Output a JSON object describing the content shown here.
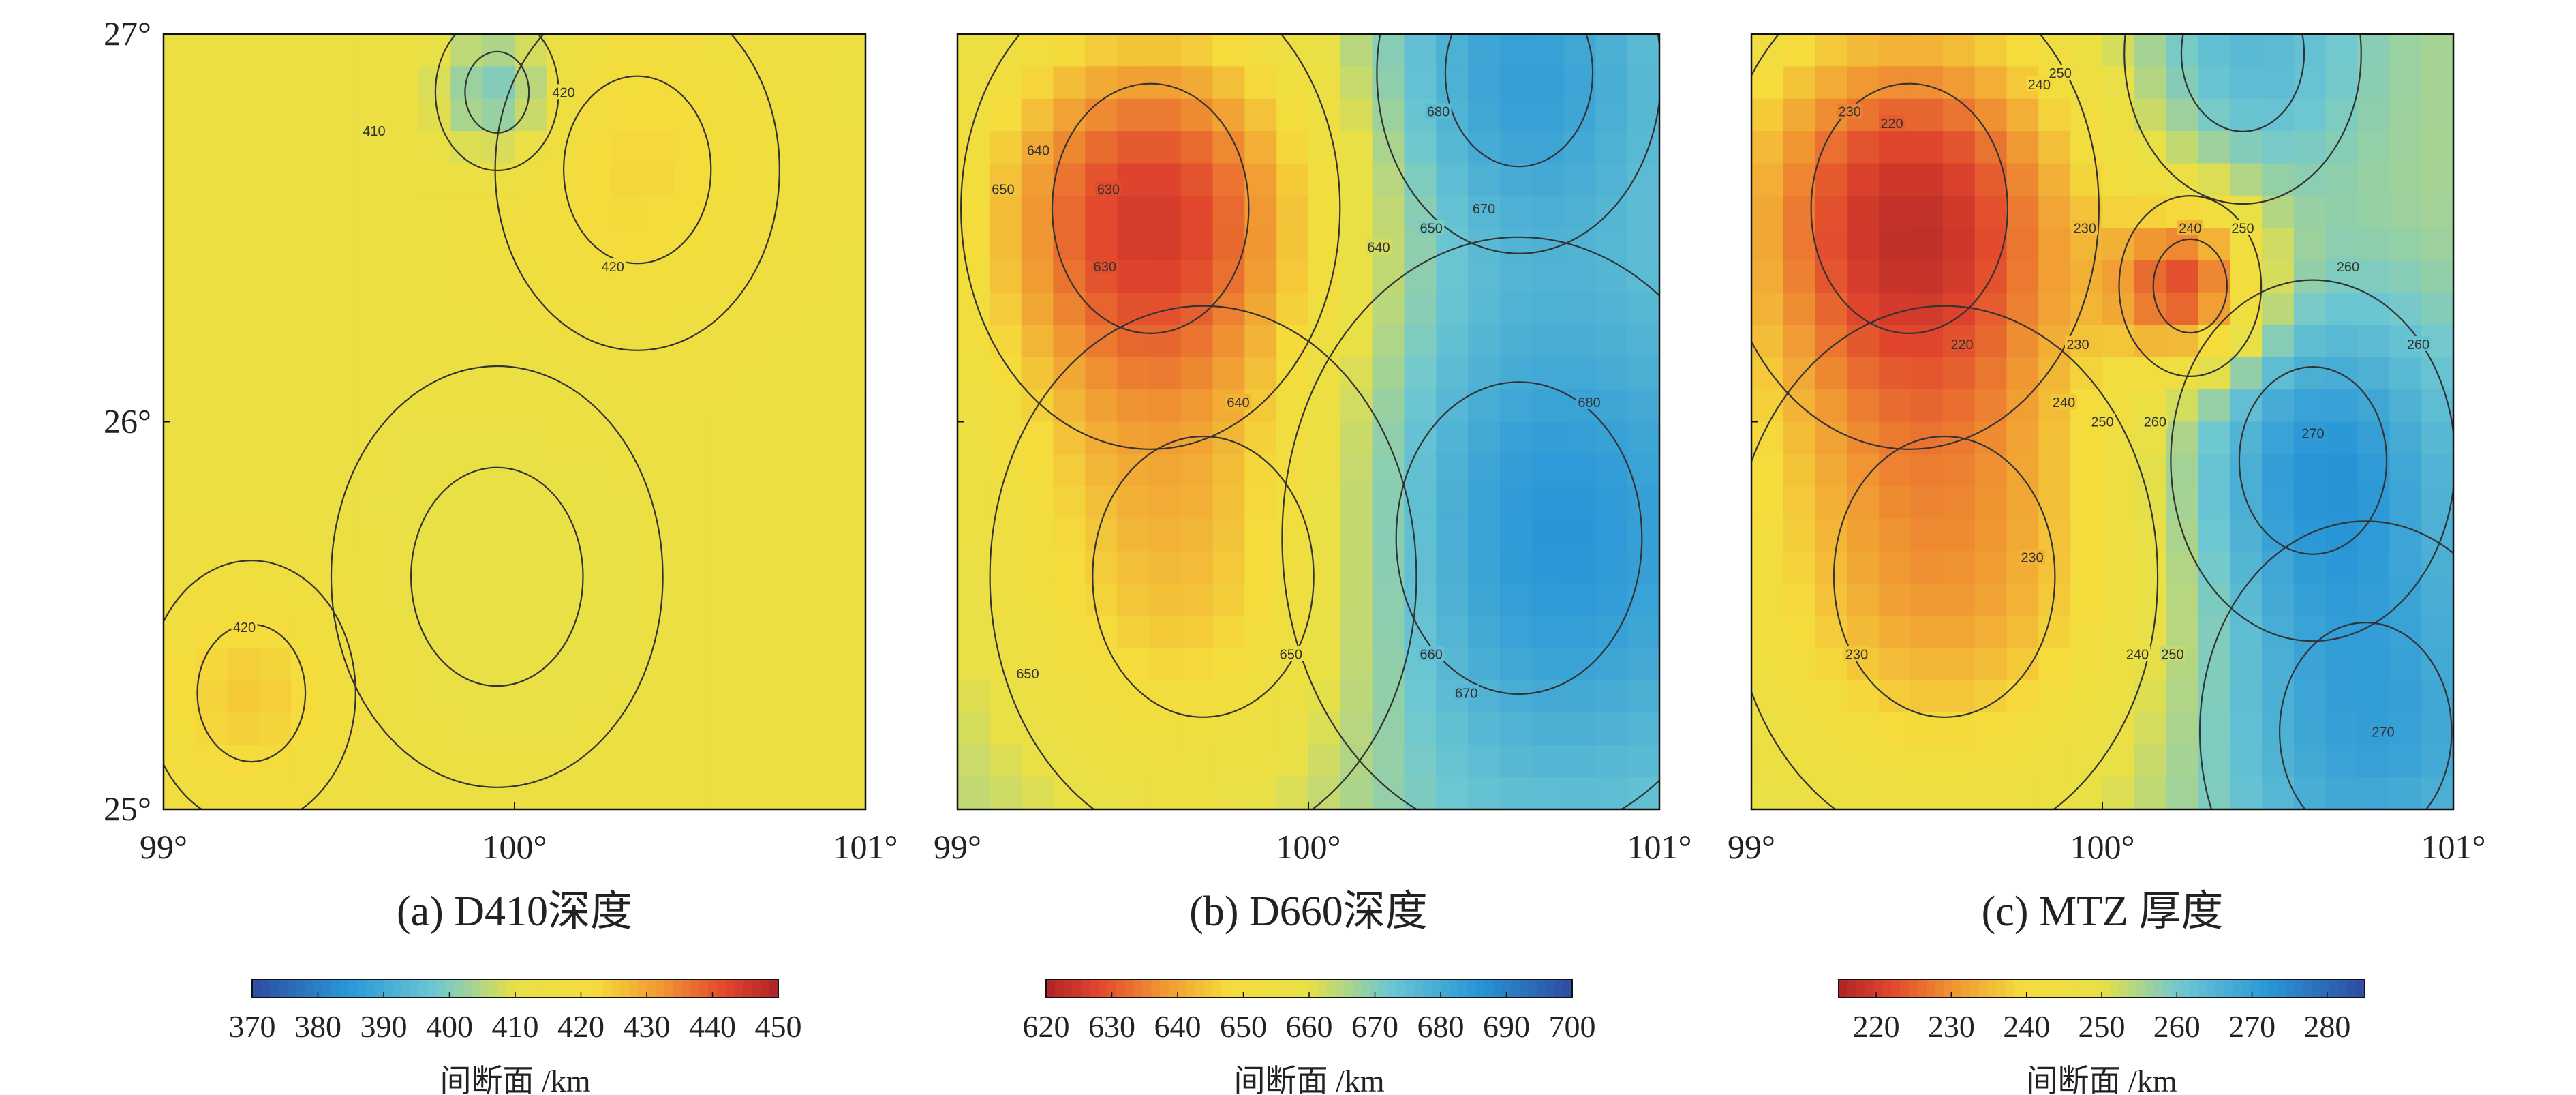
{
  "chart_data": [
    {
      "type": "heatmap",
      "panel": "a",
      "caption": "(a) D410深度",
      "xlim": [
        99,
        101
      ],
      "ylim": [
        25,
        27
      ],
      "xticks": [
        "99°",
        "100°",
        "101°"
      ],
      "yticks": [
        "25°",
        "26°",
        "27°"
      ],
      "colormap": "blue-to-red",
      "colorbar": {
        "ticks": [
          "370",
          "380",
          "390",
          "400",
          "410",
          "420",
          "430",
          "440",
          "450"
        ],
        "min": 370,
        "max": 450,
        "label": "间断面 /km"
      },
      "base_value": 414,
      "blobs": [
        {
          "lon": 100.35,
          "lat": 26.65,
          "value": 423,
          "r": 0.3
        },
        {
          "lon": 99.95,
          "lat": 26.85,
          "value": 397,
          "r": 0.13
        },
        {
          "lon": 99.25,
          "lat": 25.3,
          "value": 425,
          "r": 0.22
        },
        {
          "lon": 99.95,
          "lat": 25.6,
          "value": 410,
          "r": 0.35
        }
      ],
      "contour_labels": [
        {
          "text": "420",
          "lon": 100.14,
          "lat": 26.85
        },
        {
          "text": "410",
          "lon": 99.6,
          "lat": 26.75
        },
        {
          "text": "420",
          "lon": 100.28,
          "lat": 26.4
        },
        {
          "text": "420",
          "lon": 99.23,
          "lat": 25.47
        }
      ]
    },
    {
      "type": "heatmap",
      "panel": "b",
      "caption": "(b) D660深度",
      "xlim": [
        99,
        101
      ],
      "ylim": [
        25,
        27
      ],
      "xticks": [
        "99°",
        "100°",
        "101°"
      ],
      "yticks": [
        "25°",
        "26°",
        "27°"
      ],
      "colormap": "red-to-blue",
      "colorbar": {
        "ticks": [
          "620",
          "630",
          "640",
          "650",
          "660",
          "670",
          "680",
          "690",
          "700"
        ],
        "min": 620,
        "max": 700,
        "label": "间断面 /km"
      },
      "base_value": 668,
      "blobs": [
        {
          "lon": 99.55,
          "lat": 26.55,
          "value": 628,
          "r": 0.4
        },
        {
          "lon": 99.7,
          "lat": 25.6,
          "value": 642,
          "r": 0.45
        },
        {
          "lon": 100.6,
          "lat": 25.7,
          "value": 688,
          "r": 0.5
        },
        {
          "lon": 100.6,
          "lat": 26.9,
          "value": 683,
          "r": 0.3
        }
      ],
      "contour_labels": [
        {
          "text": "630",
          "lon": 99.43,
          "lat": 26.6
        },
        {
          "text": "630",
          "lon": 99.42,
          "lat": 26.4
        },
        {
          "text": "640",
          "lon": 99.23,
          "lat": 26.7
        },
        {
          "text": "640",
          "lon": 99.8,
          "lat": 26.05
        },
        {
          "text": "640",
          "lon": 100.2,
          "lat": 26.45
        },
        {
          "text": "650",
          "lon": 99.13,
          "lat": 26.6
        },
        {
          "text": "650",
          "lon": 100.35,
          "lat": 26.5
        },
        {
          "text": "650",
          "lon": 99.2,
          "lat": 25.35
        },
        {
          "text": "650",
          "lon": 99.95,
          "lat": 25.4
        },
        {
          "text": "660",
          "lon": 100.35,
          "lat": 25.4
        },
        {
          "text": "670",
          "lon": 100.45,
          "lat": 25.3
        },
        {
          "text": "670",
          "lon": 100.5,
          "lat": 26.55
        },
        {
          "text": "680",
          "lon": 100.37,
          "lat": 26.8
        },
        {
          "text": "680",
          "lon": 100.8,
          "lat": 26.05
        }
      ]
    },
    {
      "type": "heatmap",
      "panel": "c",
      "caption": "(c) MTZ 厚度",
      "xlim": [
        99,
        101
      ],
      "ylim": [
        25,
        27
      ],
      "xticks": [
        "99°",
        "100°",
        "101°"
      ],
      "yticks": [
        "25°",
        "26°",
        "27°"
      ],
      "colormap": "red-to-blue",
      "colorbar": {
        "ticks": [
          "220",
          "230",
          "240",
          "250",
          "260",
          "270",
          "280"
        ],
        "min": 215,
        "max": 285,
        "label": "间断面 /km"
      },
      "base_value": 255,
      "blobs": [
        {
          "lon": 99.45,
          "lat": 26.55,
          "value": 220,
          "r": 0.4
        },
        {
          "lon": 99.55,
          "lat": 25.6,
          "value": 232,
          "r": 0.45
        },
        {
          "lon": 100.25,
          "lat": 26.35,
          "value": 226,
          "r": 0.15
        },
        {
          "lon": 100.6,
          "lat": 25.9,
          "value": 272,
          "r": 0.3
        },
        {
          "lon": 100.75,
          "lat": 25.2,
          "value": 270,
          "r": 0.35
        },
        {
          "lon": 100.4,
          "lat": 26.95,
          "value": 265,
          "r": 0.25
        }
      ],
      "contour_labels": [
        {
          "text": "220",
          "lon": 99.4,
          "lat": 26.77
        },
        {
          "text": "220",
          "lon": 99.6,
          "lat": 26.2
        },
        {
          "text": "230",
          "lon": 99.28,
          "lat": 26.8
        },
        {
          "text": "230",
          "lon": 99.95,
          "lat": 26.5
        },
        {
          "text": "230",
          "lon": 99.93,
          "lat": 26.2
        },
        {
          "text": "230",
          "lon": 99.3,
          "lat": 25.4
        },
        {
          "text": "230",
          "lon": 99.8,
          "lat": 25.65
        },
        {
          "text": "240",
          "lon": 99.82,
          "lat": 26.87
        },
        {
          "text": "240",
          "lon": 100.25,
          "lat": 26.5
        },
        {
          "text": "240",
          "lon": 99.89,
          "lat": 26.05
        },
        {
          "text": "240",
          "lon": 100.1,
          "lat": 25.4
        },
        {
          "text": "250",
          "lon": 99.88,
          "lat": 26.9
        },
        {
          "text": "250",
          "lon": 100.4,
          "lat": 26.5
        },
        {
          "text": "250",
          "lon": 100.0,
          "lat": 26.0
        },
        {
          "text": "250",
          "lon": 100.2,
          "lat": 25.4
        },
        {
          "text": "260",
          "lon": 100.15,
          "lat": 26.0
        },
        {
          "text": "260",
          "lon": 100.7,
          "lat": 26.4
        },
        {
          "text": "260",
          "lon": 100.9,
          "lat": 26.2
        },
        {
          "text": "270",
          "lon": 100.6,
          "lat": 25.97
        },
        {
          "text": "270",
          "lon": 100.8,
          "lat": 25.2
        }
      ]
    }
  ]
}
